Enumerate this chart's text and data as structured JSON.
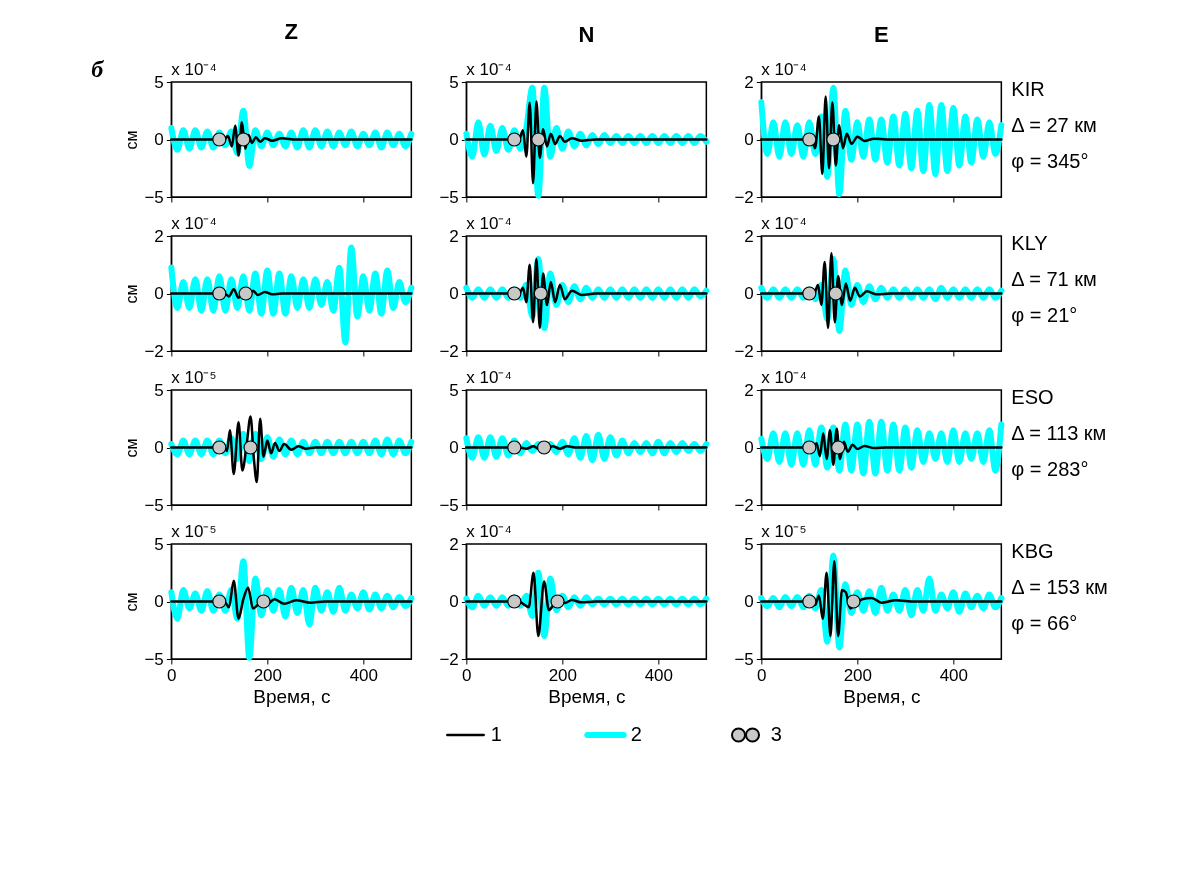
{
  "chart_data": [
    {
      "type": "line",
      "title": "Z",
      "ylabel": "см",
      "xlim": [
        0,
        500
      ],
      "xticks": [
        0,
        200,
        400
      ],
      "ylim": [
        -5,
        5
      ],
      "yticks": [
        -5,
        0,
        5
      ],
      "tick_labels": "y",
      "legend": "bottom",
      "annotations": [
        "x 10⁻⁴",
        "б"
      ],
      "series": [
        {
          "name": "1",
          "color": "#000000",
          "x": [
            0,
            110,
            118,
            126,
            133,
            140,
            147,
            154,
            161,
            168,
            176,
            185,
            195,
            210,
            230,
            260,
            500
          ],
          "values": [
            0,
            0,
            0.3,
            -0.6,
            1.2,
            -1.4,
            1.5,
            -0.8,
            0.4,
            -0.3,
            0.2,
            -0.2,
            0.1,
            -0.1,
            0.1,
            0,
            0
          ]
        },
        {
          "name": "2",
          "color": "#00ffff",
          "x": [
            0,
            12.5,
            25,
            37.5,
            50,
            62.5,
            75,
            87.5,
            100,
            112.5,
            125,
            137.5,
            150,
            162.5,
            175,
            187.5,
            200,
            212.5,
            225,
            237.5,
            250,
            262.5,
            275,
            287.5,
            300,
            312.5,
            325,
            337.5,
            350,
            362.5,
            375,
            387.5,
            400,
            412.5,
            425,
            437.5,
            450,
            462.5,
            475,
            487.5,
            500
          ],
          "values": [
            1.0,
            -0.9,
            0.8,
            -0.8,
            0.8,
            -0.7,
            0.7,
            -0.7,
            0.6,
            -0.5,
            0.7,
            -1.2,
            2.5,
            -2.3,
            0.8,
            -0.6,
            0.6,
            -0.5,
            0.5,
            -0.6,
            0.6,
            -0.7,
            0.8,
            -0.7,
            0.8,
            -0.6,
            0.7,
            -0.6,
            0.6,
            -0.5,
            0.7,
            -0.6,
            0.5,
            -0.5,
            0.6,
            -0.7,
            0.6,
            -0.5,
            0.5,
            -0.6,
            0.5
          ]
        },
        {
          "name": "3",
          "type": "scatter",
          "marker": "circle",
          "color": "#c8c8c8",
          "x": [
            100,
            150
          ],
          "values": [
            0,
            0
          ]
        }
      ]
    },
    {
      "type": "line",
      "title": "N",
      "xlim": [
        0,
        500
      ],
      "xticks": [
        0,
        200,
        400
      ],
      "ylim": [
        -5,
        5
      ],
      "yticks": [
        -5,
        0,
        5
      ],
      "tick_labels": "y",
      "annotations": [
        "x 10⁻⁴"
      ],
      "series": [
        {
          "color": "#000000",
          "x": [
            0,
            110,
            118,
            125,
            132,
            139,
            146,
            153,
            160,
            168,
            176,
            185,
            195,
            205,
            220,
            240,
            270,
            500
          ],
          "values": [
            0,
            0,
            0.8,
            -1.5,
            3.2,
            -3.8,
            3.3,
            -1.6,
            0.9,
            -0.6,
            0.5,
            -0.4,
            0.3,
            -0.2,
            0.1,
            -0.1,
            0,
            0
          ]
        },
        {
          "color": "#00ffff",
          "x": [
            0,
            12.5,
            25,
            37.5,
            50,
            62.5,
            75,
            87.5,
            100,
            112.5,
            125,
            137.5,
            150,
            162.5,
            175,
            187.5,
            200,
            212.5,
            225,
            237.5,
            250,
            262.5,
            275,
            287.5,
            300,
            312.5,
            325,
            337.5,
            350,
            362.5,
            375,
            387.5,
            400,
            412.5,
            425,
            437.5,
            450,
            462.5,
            475,
            487.5,
            500
          ],
          "values": [
            0.5,
            -1.5,
            1.5,
            -1.3,
            1.2,
            -1.0,
            1.0,
            -0.9,
            0.8,
            -0.8,
            1.0,
            4.5,
            -4.9,
            4.5,
            -1.5,
            1.0,
            -0.8,
            0.7,
            -0.6,
            0.5,
            -0.5,
            0.4,
            -0.4,
            0.4,
            -0.3,
            0.3,
            -0.3,
            0.3,
            -0.3,
            0.3,
            -0.3,
            0.3,
            -0.3,
            0.3,
            -0.3,
            0.3,
            -0.3,
            0.3,
            -0.3,
            0.3,
            -0.2
          ]
        },
        {
          "type": "scatter",
          "marker": "circle",
          "color": "#c8c8c8",
          "x": [
            100,
            150
          ],
          "values": [
            0,
            0
          ]
        }
      ]
    },
    {
      "type": "line",
      "title": "E",
      "xlim": [
        0,
        500
      ],
      "xticks": [
        0,
        200,
        400
      ],
      "ylim": [
        -2,
        2
      ],
      "yticks": [
        -2,
        0,
        2
      ],
      "tick_labels": "y",
      "annotations": [
        "x 10⁻⁴",
        "KIR",
        "Δ = 27 км",
        "φ = 345°"
      ],
      "series": [
        {
          "color": "#000000",
          "x": [
            0,
            105,
            112,
            120,
            127,
            134,
            141,
            148,
            155,
            162,
            170,
            178,
            188,
            200,
            215,
            235,
            260,
            500
          ],
          "values": [
            0,
            0,
            -0.3,
            0.8,
            -1.2,
            1.5,
            -1.0,
            1.3,
            -0.9,
            0.5,
            -0.3,
            0.2,
            -0.15,
            0.1,
            -0.05,
            0.03,
            0,
            0
          ]
        },
        {
          "color": "#00ffff",
          "x": [
            0,
            12.5,
            25,
            37.5,
            50,
            62.5,
            75,
            87.5,
            100,
            112.5,
            125,
            137.5,
            150,
            162.5,
            175,
            187.5,
            200,
            212.5,
            225,
            237.5,
            250,
            262.5,
            275,
            287.5,
            300,
            312.5,
            325,
            337.5,
            350,
            362.5,
            375,
            387.5,
            400,
            412.5,
            425,
            437.5,
            450,
            462.5,
            475,
            487.5,
            500
          ],
          "values": [
            1.3,
            -0.5,
            0.6,
            -0.6,
            0.6,
            -0.5,
            0.5,
            -0.6,
            0.6,
            -0.5,
            0.8,
            -1.3,
            1.8,
            -1.9,
            1.0,
            -0.7,
            0.6,
            -0.6,
            0.7,
            -0.7,
            0.7,
            -0.8,
            0.8,
            -0.9,
            0.9,
            -1.0,
            1.0,
            -1.1,
            1.2,
            -1.2,
            1.2,
            -1.1,
            1.1,
            -0.9,
            0.8,
            -0.8,
            0.7,
            -0.6,
            0.6,
            -0.5,
            0.5
          ]
        },
        {
          "type": "scatter",
          "marker": "circle",
          "color": "#c8c8c8",
          "x": [
            100,
            150
          ],
          "values": [
            0,
            0
          ]
        }
      ]
    },
    {
      "type": "line",
      "ylabel": "см",
      "xlim": [
        0,
        500
      ],
      "xticks": [
        0,
        200,
        400
      ],
      "ylim": [
        -2,
        2
      ],
      "yticks": [
        -2,
        0,
        2
      ],
      "tick_labels": "y",
      "annotations": [
        "x 10⁻⁴"
      ],
      "series": [
        {
          "color": "#000000",
          "x": [
            0,
            110,
            120,
            130,
            140,
            150,
            160,
            170,
            180,
            195,
            210,
            230,
            500
          ],
          "values": [
            0,
            0,
            -0.1,
            0.15,
            -0.15,
            0.15,
            -0.1,
            0.1,
            -0.05,
            0.05,
            -0.03,
            0,
            0
          ]
        },
        {
          "color": "#00ffff",
          "x": [
            0,
            12.5,
            25,
            37.5,
            50,
            62.5,
            75,
            87.5,
            100,
            112.5,
            125,
            137.5,
            150,
            162.5,
            175,
            187.5,
            200,
            212.5,
            225,
            237.5,
            250,
            262.5,
            275,
            287.5,
            300,
            312.5,
            325,
            337.5,
            350,
            362.5,
            375,
            387.5,
            400,
            412.5,
            425,
            437.5,
            450,
            462.5,
            475,
            487.5,
            500
          ],
          "values": [
            0.9,
            -0.5,
            0.4,
            -0.5,
            0.5,
            -0.6,
            0.5,
            -0.6,
            0.6,
            -0.6,
            0.5,
            -0.5,
            0.6,
            -0.6,
            0.7,
            -0.7,
            0.8,
            -0.7,
            0.7,
            -0.7,
            0.6,
            -0.5,
            0.5,
            -0.5,
            0.5,
            -0.4,
            0.4,
            -0.6,
            0.9,
            -1.7,
            1.6,
            -0.8,
            0.6,
            -0.6,
            0.7,
            -0.7,
            0.8,
            -0.5,
            0.4,
            -0.3,
            0.2
          ]
        },
        {
          "type": "scatter",
          "marker": "circle",
          "color": "#c8c8c8",
          "x": [
            100,
            155
          ],
          "values": [
            0,
            0
          ]
        }
      ]
    },
    {
      "type": "line",
      "xlim": [
        0,
        500
      ],
      "xticks": [
        0,
        200,
        400
      ],
      "ylim": [
        -2,
        2
      ],
      "yticks": [
        -2,
        0,
        2
      ],
      "tick_labels": "y",
      "annotations": [
        "x 10⁻⁴"
      ],
      "series": [
        {
          "color": "#000000",
          "x": [
            0,
            110,
            118,
            125,
            132,
            139,
            146,
            153,
            160,
            168,
            176,
            185,
            195,
            205,
            220,
            240,
            270,
            500
          ],
          "values": [
            0,
            0,
            0.2,
            -0.3,
            1.0,
            -1.0,
            1.2,
            -1.2,
            0.7,
            -0.4,
            0.4,
            -0.3,
            0.3,
            -0.2,
            0.1,
            -0.05,
            0,
            0
          ]
        },
        {
          "color": "#00ffff",
          "x": [
            0,
            12.5,
            25,
            37.5,
            50,
            62.5,
            75,
            87.5,
            100,
            112.5,
            125,
            137.5,
            150,
            162.5,
            175,
            187.5,
            200,
            212.5,
            225,
            237.5,
            250,
            262.5,
            275,
            287.5,
            300,
            312.5,
            325,
            337.5,
            350,
            362.5,
            375,
            387.5,
            400,
            412.5,
            425,
            437.5,
            450,
            462.5,
            475,
            487.5,
            500
          ],
          "values": [
            0.2,
            -0.15,
            0.15,
            -0.15,
            0.15,
            -0.15,
            0.15,
            -0.15,
            0.15,
            -0.15,
            0.3,
            -0.8,
            1.2,
            -1.2,
            0.7,
            -0.4,
            0.3,
            -0.3,
            0.25,
            -0.2,
            0.2,
            -0.15,
            0.15,
            -0.15,
            0.15,
            -0.15,
            0.15,
            -0.15,
            0.15,
            -0.15,
            0.15,
            -0.15,
            0.15,
            -0.15,
            0.15,
            -0.15,
            0.15,
            -0.15,
            0.15,
            -0.1,
            0.1
          ]
        },
        {
          "type": "scatter",
          "marker": "circle",
          "color": "#c8c8c8",
          "x": [
            100,
            155
          ],
          "values": [
            0,
            0
          ]
        }
      ]
    },
    {
      "type": "line",
      "xlim": [
        0,
        500
      ],
      "xticks": [
        0,
        200,
        400
      ],
      "ylim": [
        -2,
        2
      ],
      "yticks": [
        -2,
        0,
        2
      ],
      "tick_labels": "y",
      "annotations": [
        "x 10⁻⁴",
        "KLY",
        "Δ = 71 км",
        "φ = 21°"
      ],
      "series": [
        {
          "color": "#000000",
          "x": [
            0,
            110,
            118,
            125,
            132,
            139,
            146,
            153,
            160,
            168,
            176,
            185,
            195,
            205,
            220,
            240,
            270,
            500
          ],
          "values": [
            0,
            0,
            0.3,
            -0.4,
            1.1,
            -1.2,
            1.4,
            -1.0,
            0.6,
            -0.4,
            0.35,
            -0.25,
            0.2,
            -0.1,
            0.08,
            -0.03,
            0,
            0
          ]
        },
        {
          "color": "#00ffff",
          "x": [
            0,
            12.5,
            25,
            37.5,
            50,
            62.5,
            75,
            87.5,
            100,
            112.5,
            125,
            137.5,
            150,
            162.5,
            175,
            187.5,
            200,
            212.5,
            225,
            237.5,
            250,
            262.5,
            275,
            287.5,
            300,
            312.5,
            325,
            337.5,
            350,
            362.5,
            375,
            387.5,
            400,
            412.5,
            425,
            437.5,
            450,
            462.5,
            475,
            487.5,
            500
          ],
          "values": [
            0.2,
            -0.15,
            0.15,
            -0.15,
            0.15,
            -0.15,
            0.15,
            -0.15,
            0.15,
            -0.2,
            0.3,
            -0.9,
            1.2,
            -1.3,
            0.8,
            -0.4,
            0.3,
            -0.3,
            0.25,
            -0.2,
            0.2,
            -0.15,
            0.15,
            -0.15,
            0.15,
            -0.15,
            0.15,
            -0.15,
            0.15,
            -0.2,
            0.2,
            -0.15,
            0.15,
            -0.15,
            0.15,
            -0.15,
            0.15,
            -0.15,
            0.15,
            -0.15,
            0.1
          ]
        },
        {
          "type": "scatter",
          "marker": "circle",
          "color": "#c8c8c8",
          "x": [
            100,
            155
          ],
          "values": [
            0,
            0
          ]
        }
      ]
    },
    {
      "type": "line",
      "ylabel": "см",
      "xlim": [
        0,
        500
      ],
      "xticks": [
        0,
        200,
        400
      ],
      "ylim": [
        -5,
        5
      ],
      "yticks": [
        -5,
        0,
        5
      ],
      "tick_labels": "y",
      "annotations": [
        "x 10⁻⁵"
      ],
      "series": [
        {
          "color": "#000000",
          "x": [
            0,
            110,
            116,
            122,
            130,
            140,
            148,
            157,
            165,
            172,
            178,
            185,
            192,
            200,
            208,
            216,
            225,
            235,
            250,
            265,
            280,
            300,
            500
          ],
          "values": [
            0,
            0,
            -0.3,
            1.5,
            -2.3,
            2.2,
            -2.0,
            0.3,
            2.7,
            -1.0,
            -3.0,
            2.5,
            -0.8,
            0.6,
            -0.5,
            0.4,
            -0.3,
            0.3,
            -0.2,
            0.1,
            -0.1,
            0,
            0
          ]
        },
        {
          "color": "#00ffff",
          "x": [
            0,
            12.5,
            25,
            37.5,
            50,
            62.5,
            75,
            87.5,
            100,
            112.5,
            125,
            137.5,
            150,
            162.5,
            175,
            187.5,
            200,
            212.5,
            225,
            237.5,
            250,
            262.5,
            275,
            287.5,
            300,
            312.5,
            325,
            337.5,
            350,
            362.5,
            375,
            387.5,
            400,
            412.5,
            425,
            437.5,
            450,
            462.5,
            475,
            487.5,
            500
          ],
          "values": [
            0.3,
            -0.6,
            0.6,
            -0.6,
            0.6,
            -0.6,
            0.6,
            -0.6,
            0.6,
            -0.5,
            0.8,
            -1.0,
            1.2,
            -1.2,
            1.2,
            -1.0,
            0.9,
            -0.8,
            0.7,
            -0.6,
            0.6,
            -0.6,
            0.5,
            -0.5,
            0.5,
            -0.5,
            0.5,
            -0.5,
            0.5,
            -0.5,
            0.5,
            -0.5,
            0.5,
            -0.5,
            0.6,
            -0.6,
            0.7,
            -0.6,
            0.6,
            -0.5,
            0.5
          ]
        },
        {
          "type": "scatter",
          "marker": "circle",
          "color": "#c8c8c8",
          "x": [
            100,
            165
          ],
          "values": [
            0,
            0
          ]
        }
      ]
    },
    {
      "type": "line",
      "xlim": [
        0,
        500
      ],
      "xticks": [
        0,
        200,
        400
      ],
      "ylim": [
        -5,
        5
      ],
      "yticks": [
        -5,
        0,
        5
      ],
      "tick_labels": "y",
      "annotations": [
        "x 10⁻⁴"
      ],
      "series": [
        {
          "color": "#000000",
          "x": [
            0,
            110,
            125,
            140,
            150,
            160,
            170,
            180,
            195,
            210,
            230,
            500
          ],
          "values": [
            0,
            0,
            -0.1,
            0.1,
            -0.1,
            0.1,
            -0.1,
            0.1,
            -0.1,
            0.1,
            0,
            0
          ]
        },
        {
          "color": "#00ffff",
          "x": [
            0,
            12.5,
            25,
            37.5,
            50,
            62.5,
            75,
            87.5,
            100,
            112.5,
            125,
            137.5,
            150,
            162.5,
            175,
            187.5,
            200,
            212.5,
            225,
            237.5,
            250,
            262.5,
            275,
            287.5,
            300,
            312.5,
            325,
            337.5,
            350,
            362.5,
            375,
            387.5,
            400,
            412.5,
            425,
            437.5,
            450,
            462.5,
            475,
            487.5,
            500
          ],
          "values": [
            0.8,
            -0.9,
            0.9,
            -0.9,
            0.9,
            -0.8,
            0.8,
            -0.7,
            0.6,
            -0.5,
            0.4,
            -0.3,
            0.3,
            -0.3,
            0.3,
            -0.4,
            0.5,
            -0.6,
            0.8,
            -0.9,
            1.0,
            -1.1,
            1.1,
            -1.0,
            0.9,
            -0.7,
            0.6,
            -0.5,
            0.4,
            -0.4,
            0.4,
            -0.5,
            0.5,
            -0.5,
            0.4,
            -0.4,
            0.4,
            -0.3,
            0.3,
            -0.3,
            0.3
          ]
        },
        {
          "type": "scatter",
          "marker": "circle",
          "color": "#c8c8c8",
          "x": [
            100,
            162
          ],
          "values": [
            0,
            0
          ]
        }
      ]
    },
    {
      "type": "line",
      "xlim": [
        0,
        500
      ],
      "xticks": [
        0,
        200,
        400
      ],
      "ylim": [
        -2,
        2
      ],
      "yticks": [
        -2,
        0,
        2
      ],
      "tick_labels": "y",
      "annotations": [
        "x 10⁻⁴",
        "ESO",
        "Δ = 113 км",
        "φ = 283°"
      ],
      "series": [
        {
          "color": "#000000",
          "x": [
            0,
            105,
            115,
            122,
            129,
            136,
            143,
            150,
            157,
            164,
            172,
            180,
            190,
            200,
            215,
            235,
            260,
            500
          ],
          "values": [
            0,
            0,
            0.15,
            -0.3,
            0.5,
            -0.4,
            0.6,
            -0.6,
            0.65,
            -0.4,
            0.2,
            -0.15,
            0.1,
            -0.05,
            0.05,
            -0.02,
            0,
            0
          ]
        },
        {
          "color": "#00ffff",
          "x": [
            0,
            12.5,
            25,
            37.5,
            50,
            62.5,
            75,
            87.5,
            100,
            112.5,
            125,
            137.5,
            150,
            162.5,
            175,
            187.5,
            200,
            212.5,
            225,
            237.5,
            250,
            262.5,
            275,
            287.5,
            300,
            312.5,
            325,
            337.5,
            350,
            362.5,
            375,
            387.5,
            400,
            412.5,
            425,
            437.5,
            450,
            462.5,
            475,
            487.5,
            500
          ],
          "values": [
            0.3,
            -0.4,
            0.5,
            -0.5,
            0.5,
            -0.6,
            0.5,
            -0.6,
            0.6,
            -0.6,
            0.7,
            -0.7,
            0.7,
            -0.8,
            0.8,
            -0.8,
            0.8,
            -0.9,
            0.9,
            -0.9,
            0.9,
            -0.8,
            0.8,
            -0.8,
            0.7,
            -0.7,
            0.6,
            -0.5,
            0.5,
            -0.4,
            0.5,
            -0.5,
            0.6,
            -0.5,
            0.5,
            -0.4,
            0.5,
            -0.5,
            0.6,
            -0.8,
            0.8
          ]
        },
        {
          "type": "scatter",
          "marker": "circle",
          "color": "#c8c8c8",
          "x": [
            100,
            160
          ],
          "values": [
            0,
            0
          ]
        }
      ]
    },
    {
      "type": "line",
      "ylabel": "см",
      "xlabel": "Время, с",
      "xlim": [
        0,
        500
      ],
      "xticks": [
        0,
        200,
        400
      ],
      "ylim": [
        -5,
        5
      ],
      "yticks": [
        -5,
        0,
        5
      ],
      "annotations": [
        "x 10⁻⁵"
      ],
      "series": [
        {
          "color": "#000000",
          "x": [
            0,
            110,
            120,
            130,
            140,
            150,
            160,
            170,
            180,
            190,
            200,
            215,
            235,
            260,
            290,
            320,
            500
          ],
          "values": [
            0,
            0,
            -0.5,
            1.8,
            -1.5,
            0.2,
            1.2,
            -0.6,
            -0.3,
            0.2,
            -0.2,
            0.2,
            -0.2,
            0.1,
            -0.1,
            0,
            0
          ]
        },
        {
          "color": "#00ffff",
          "x": [
            0,
            12.5,
            25,
            37.5,
            50,
            62.5,
            75,
            87.5,
            100,
            112.5,
            125,
            137.5,
            150,
            162.5,
            175,
            187.5,
            200,
            212.5,
            225,
            237.5,
            250,
            262.5,
            275,
            287.5,
            300,
            312.5,
            325,
            337.5,
            350,
            362.5,
            375,
            387.5,
            400,
            412.5,
            425,
            437.5,
            450,
            462.5,
            475,
            487.5,
            500
          ],
          "values": [
            0.8,
            -1.5,
            1.0,
            -0.6,
            0.7,
            -0.8,
            0.9,
            -0.8,
            0.6,
            -0.8,
            1.0,
            -1.5,
            3.5,
            -4.9,
            2.0,
            -1.2,
            1.0,
            -0.8,
            1.0,
            -1.3,
            1.2,
            -1.0,
            1.0,
            -2.0,
            1.2,
            -0.8,
            0.8,
            -0.9,
            1.2,
            -0.8,
            0.6,
            -0.6,
            0.8,
            -0.7,
            0.6,
            -0.6,
            0.5,
            -0.5,
            0.4,
            -0.4,
            0.3
          ]
        },
        {
          "type": "scatter",
          "marker": "circle",
          "color": "#c8c8c8",
          "x": [
            100,
            192
          ],
          "values": [
            0,
            0
          ]
        }
      ]
    },
    {
      "type": "line",
      "xlabel": "Время, с",
      "xlim": [
        0,
        500
      ],
      "xticks": [
        0,
        200,
        400
      ],
      "ylim": [
        -2,
        2
      ],
      "yticks": [
        -2,
        0,
        2
      ],
      "annotations": [
        "x 10⁻⁴"
      ],
      "series": [
        {
          "color": "#000000",
          "x": [
            0,
            110,
            120,
            130,
            140,
            150,
            162,
            172,
            182,
            192,
            205,
            220,
            240,
            270,
            500
          ],
          "values": [
            0,
            0,
            -0.1,
            -0.2,
            1.0,
            -1.2,
            0.7,
            -0.3,
            -0.1,
            0.1,
            -0.05,
            0.05,
            -0.03,
            0,
            0
          ]
        },
        {
          "color": "#00ffff",
          "x": [
            0,
            12.5,
            25,
            37.5,
            50,
            62.5,
            75,
            87.5,
            100,
            112.5,
            125,
            137.5,
            150,
            162.5,
            175,
            187.5,
            200,
            212.5,
            225,
            237.5,
            250,
            262.5,
            275,
            287.5,
            300,
            312.5,
            325,
            337.5,
            350,
            362.5,
            375,
            387.5,
            400,
            412.5,
            425,
            437.5,
            450,
            462.5,
            475,
            487.5,
            500
          ],
          "values": [
            0.1,
            -0.2,
            0.2,
            -0.15,
            0.15,
            -0.15,
            0.15,
            -0.15,
            0.15,
            -0.15,
            0.2,
            -0.5,
            1.0,
            -1.2,
            0.8,
            -0.3,
            0.2,
            -0.2,
            0.15,
            -0.15,
            0.15,
            -0.1,
            0.1,
            -0.1,
            0.1,
            -0.1,
            0.1,
            -0.1,
            0.1,
            -0.1,
            0.1,
            -0.1,
            0.1,
            -0.1,
            0.1,
            -0.1,
            0.1,
            -0.1,
            0.1,
            -0.1,
            0.1
          ]
        },
        {
          "type": "scatter",
          "marker": "circle",
          "color": "#c8c8c8",
          "x": [
            100,
            190
          ],
          "values": [
            0,
            0
          ]
        }
      ]
    },
    {
      "type": "line",
      "xlabel": "Время, с",
      "xlim": [
        0,
        500
      ],
      "xticks": [
        0,
        200,
        400
      ],
      "ylim": [
        -5,
        5
      ],
      "yticks": [
        -5,
        0,
        5
      ],
      "annotations": [
        "x 10⁻⁵",
        "KBG",
        "Δ = 153 км",
        "φ = 66°"
      ],
      "series": [
        {
          "color": "#000000",
          "x": [
            0,
            105,
            112,
            120,
            128,
            136,
            144,
            152,
            160,
            168,
            176,
            185,
            195,
            210,
            230,
            250,
            280,
            320,
            500
          ],
          "values": [
            0,
            0,
            -0.3,
            0.5,
            -1.5,
            2.5,
            -3.0,
            3.5,
            -3.0,
            1.0,
            0.8,
            -0.6,
            -0.3,
            0.2,
            0.3,
            -0.1,
            0.1,
            0,
            0
          ]
        },
        {
          "color": "#00ffff",
          "x": [
            0,
            12.5,
            25,
            37.5,
            50,
            62.5,
            75,
            87.5,
            100,
            112.5,
            125,
            137.5,
            150,
            162.5,
            175,
            187.5,
            200,
            212.5,
            225,
            237.5,
            250,
            262.5,
            275,
            287.5,
            300,
            312.5,
            325,
            337.5,
            350,
            362.5,
            375,
            387.5,
            400,
            412.5,
            425,
            437.5,
            450,
            462.5,
            475,
            487.5,
            500
          ],
          "values": [
            0.3,
            -0.4,
            0.3,
            -0.5,
            0.4,
            -0.4,
            0.4,
            -0.5,
            0.5,
            -0.6,
            1.0,
            -3.5,
            4.0,
            -4.0,
            1.5,
            -1.0,
            0.8,
            -0.8,
            0.9,
            -1.0,
            1.2,
            -0.8,
            0.6,
            -0.8,
            1.0,
            -1.2,
            1.0,
            -0.8,
            2.0,
            -0.8,
            0.6,
            -0.6,
            0.8,
            -0.9,
            0.7,
            -0.5,
            0.5,
            -0.6,
            0.6,
            -0.5,
            0.3
          ]
        },
        {
          "type": "scatter",
          "marker": "circle",
          "color": "#c8c8c8",
          "x": [
            100,
            192
          ],
          "values": [
            0,
            0
          ]
        }
      ]
    }
  ]
}
